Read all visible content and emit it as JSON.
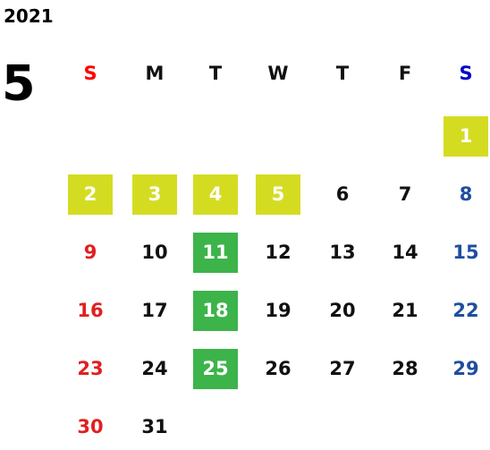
{
  "year": "2021",
  "month": "5",
  "weekdays": [
    {
      "label": "S",
      "color": "#ff0000"
    },
    {
      "label": "M",
      "color": "#111111"
    },
    {
      "label": "T",
      "color": "#111111"
    },
    {
      "label": "W",
      "color": "#111111"
    },
    {
      "label": "T",
      "color": "#111111"
    },
    {
      "label": "F",
      "color": "#111111"
    },
    {
      "label": "S",
      "color": "#0000cc"
    }
  ],
  "day_colors": [
    "#e02020",
    "#111111",
    "#111111",
    "#111111",
    "#111111",
    "#111111",
    "#1f4e9f"
  ],
  "highlight_text_color": "#ffffff",
  "weeks": [
    [
      null,
      null,
      null,
      null,
      null,
      null,
      {
        "day": 1,
        "fill": "#d4dc22"
      }
    ],
    [
      {
        "day": 2,
        "fill": "#d4dc22"
      },
      {
        "day": 3,
        "fill": "#d4dc22"
      },
      {
        "day": 4,
        "fill": "#d4dc22"
      },
      {
        "day": 5,
        "fill": "#d4dc22"
      },
      {
        "day": 6
      },
      {
        "day": 7
      },
      {
        "day": 8
      }
    ],
    [
      {
        "day": 9
      },
      {
        "day": 10
      },
      {
        "day": 11,
        "fill": "#3cb44a"
      },
      {
        "day": 12
      },
      {
        "day": 13
      },
      {
        "day": 14
      },
      {
        "day": 15
      }
    ],
    [
      {
        "day": 16
      },
      {
        "day": 17
      },
      {
        "day": 18,
        "fill": "#3cb44a"
      },
      {
        "day": 19
      },
      {
        "day": 20
      },
      {
        "day": 21
      },
      {
        "day": 22
      }
    ],
    [
      {
        "day": 23
      },
      {
        "day": 24
      },
      {
        "day": 25,
        "fill": "#3cb44a"
      },
      {
        "day": 26
      },
      {
        "day": 27
      },
      {
        "day": 28
      },
      {
        "day": 29
      }
    ],
    [
      {
        "day": 30
      },
      {
        "day": 31
      }
    ]
  ]
}
